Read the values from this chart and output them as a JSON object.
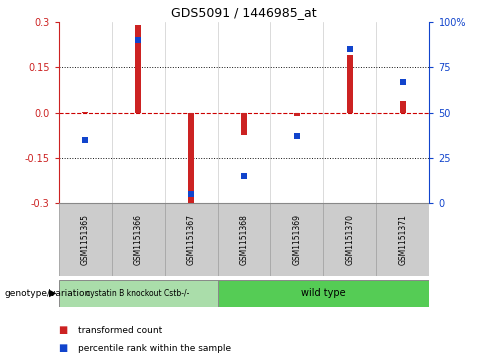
{
  "title": "GDS5091 / 1446985_at",
  "samples": [
    "GSM1151365",
    "GSM1151366",
    "GSM1151367",
    "GSM1151368",
    "GSM1151369",
    "GSM1151370",
    "GSM1151371"
  ],
  "red_bars": [
    0.002,
    0.29,
    -0.305,
    -0.075,
    -0.01,
    0.19,
    0.038
  ],
  "blue_dots": [
    35,
    90,
    5,
    15,
    37,
    85,
    67
  ],
  "ylim_left": [
    -0.3,
    0.3
  ],
  "ylim_right": [
    0,
    100
  ],
  "yticks_left": [
    -0.3,
    -0.15,
    0.0,
    0.15,
    0.3
  ],
  "yticks_right": [
    0,
    25,
    50,
    75,
    100
  ],
  "ytick_labels_right": [
    "0",
    "25",
    "50",
    "75",
    "100%"
  ],
  "bar_color": "#cc2222",
  "dot_color": "#1144cc",
  "zero_line_color": "#cc0000",
  "grid_line_color": "#111111",
  "background_color": "#ffffff",
  "group1_label": "cystatin B knockout Cstb-/-",
  "group2_label": "wild type",
  "group1_indices": [
    0,
    1,
    2
  ],
  "group2_indices": [
    3,
    4,
    5,
    6
  ],
  "group1_color": "#aaddaa",
  "group2_color": "#55cc55",
  "label_genotype": "genotype/variation",
  "legend_red": "transformed count",
  "legend_blue": "percentile rank within the sample",
  "bar_width": 0.12
}
